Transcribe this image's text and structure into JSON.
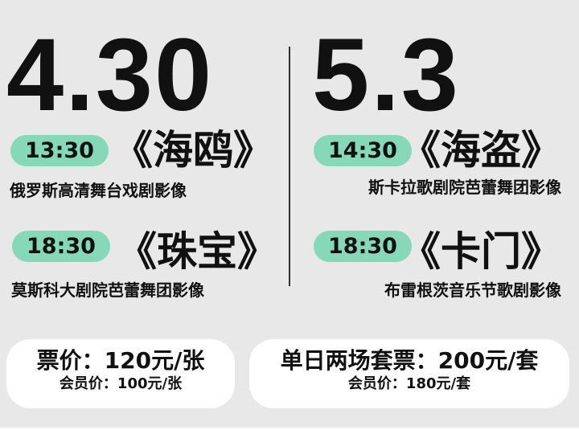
{
  "left": {
    "date": "4.30",
    "shows": [
      {
        "time": "13:30",
        "title": "《海鸥》",
        "subtitle": "俄罗斯高清舞台戏剧影像"
      },
      {
        "time": "18:30",
        "title": "《珠宝》",
        "subtitle": "莫斯科大剧院芭蕾舞团影像"
      }
    ]
  },
  "right": {
    "date": "5.3",
    "shows": [
      {
        "time": "14:30",
        "title": "《海盗》",
        "subtitle": "斯卡拉歌剧院芭蕾舞团影像"
      },
      {
        "time": "18:30",
        "title": "《卡门》",
        "subtitle": "布雷根茨音乐节歌剧影像"
      }
    ]
  },
  "pricing": {
    "single": {
      "price": "票价：120元/张",
      "member": "会员价：100元/张"
    },
    "combo": {
      "price": "单日两场套票：200元/套",
      "member": "会员价：180元/套"
    }
  },
  "colors": {
    "background": "#e8e8e8",
    "pill": "#86d9b8",
    "text": "#111111",
    "card": "#ffffff"
  }
}
